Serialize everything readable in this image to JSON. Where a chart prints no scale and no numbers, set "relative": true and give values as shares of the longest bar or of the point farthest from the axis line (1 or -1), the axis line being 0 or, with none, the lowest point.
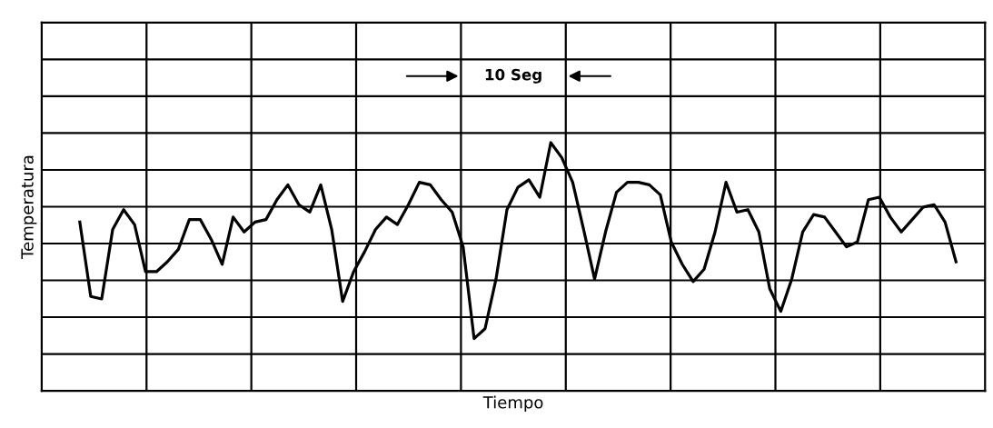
{
  "chart_data": {
    "type": "line",
    "relative": true,
    "xlabel": "Tiempo",
    "ylabel": "Temperatura",
    "annotations": [
      "10 Seg"
    ],
    "categories": [
      null,
      null,
      null,
      null,
      null,
      null,
      null,
      null,
      null,
      null,
      null,
      null,
      null,
      null,
      null,
      null,
      null,
      null,
      null,
      null,
      null,
      null,
      null,
      null,
      null,
      null,
      null,
      null,
      null,
      null,
      null,
      null,
      null,
      null,
      null,
      null,
      null,
      null,
      null,
      null,
      null,
      null,
      null,
      null,
      null,
      null,
      null,
      null,
      null,
      null,
      null,
      null,
      null,
      null,
      null,
      null,
      null,
      null,
      null,
      null,
      null,
      null,
      null,
      null,
      null,
      null,
      null,
      null,
      null,
      null,
      null,
      null,
      null,
      null,
      null,
      null,
      null,
      null,
      null,
      null,
      null
    ],
    "tick_labels": false,
    "grid": true,
    "marker": "none",
    "line_style": "solid",
    "series": [
      {
        "color": "#000000",
        "values": [
          0.68,
          0.38,
          0.37,
          0.65,
          0.73,
          0.67,
          0.48,
          0.48,
          0.52,
          0.57,
          0.69,
          0.69,
          0.61,
          0.51,
          0.7,
          0.64,
          0.68,
          0.69,
          0.77,
          0.83,
          0.75,
          0.72,
          0.83,
          0.65,
          0.36,
          0.48,
          0.56,
          0.65,
          0.7,
          0.67,
          0.75,
          0.84,
          0.83,
          0.77,
          0.72,
          0.58,
          0.21,
          0.25,
          0.45,
          0.73,
          0.82,
          0.85,
          0.78,
          1,
          0.94,
          0.84,
          0.65,
          0.45,
          0.64,
          0.8,
          0.84,
          0.84,
          0.83,
          0.79,
          0.6,
          0.51,
          0.44,
          0.49,
          0.64,
          0.84,
          0.72,
          0.73,
          0.64,
          0.41,
          0.32,
          0.45,
          0.64,
          0.71,
          0.7,
          0.64,
          0.58,
          0.6,
          0.77,
          0.78,
          0.7,
          0.64,
          0.69,
          0.74,
          0.75,
          0.68,
          0.52
        ]
      }
    ]
  }
}
